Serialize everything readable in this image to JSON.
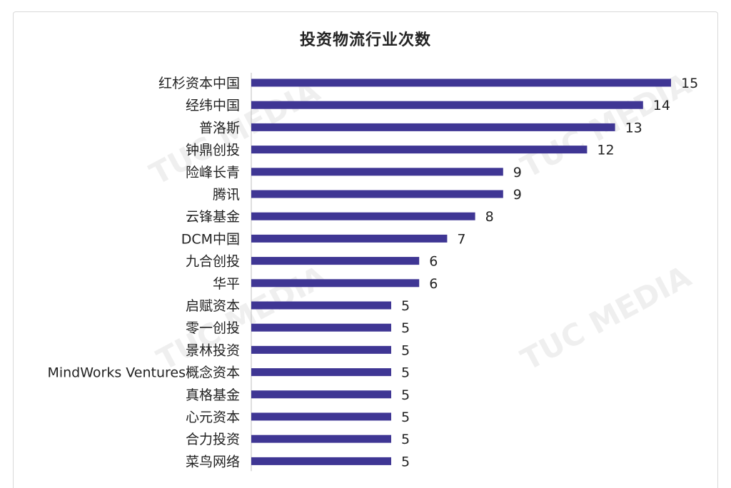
{
  "chart_data": {
    "type": "bar",
    "orientation": "horizontal",
    "title": "投资物流行业次数",
    "categories": [
      "红杉资本中国",
      "经纬中国",
      "普洛斯",
      "钟鼎创投",
      "险峰长青",
      "腾讯",
      "云锋基金",
      "DCM中国",
      "九合创投",
      "华平",
      "启赋资本",
      "零一创投",
      "景林投资",
      "MindWorks Ventures概念资本",
      "真格基金",
      "心元资本",
      "合力投资",
      "菜鸟网络"
    ],
    "values": [
      15,
      14,
      13,
      12,
      9,
      9,
      8,
      7,
      6,
      6,
      5,
      5,
      5,
      5,
      5,
      5,
      5,
      5
    ],
    "xlim": [
      0,
      15
    ],
    "grid": false,
    "legend": "none",
    "bar_color": "#3f3694"
  },
  "watermark": {
    "text": "TUC MEDIA"
  }
}
